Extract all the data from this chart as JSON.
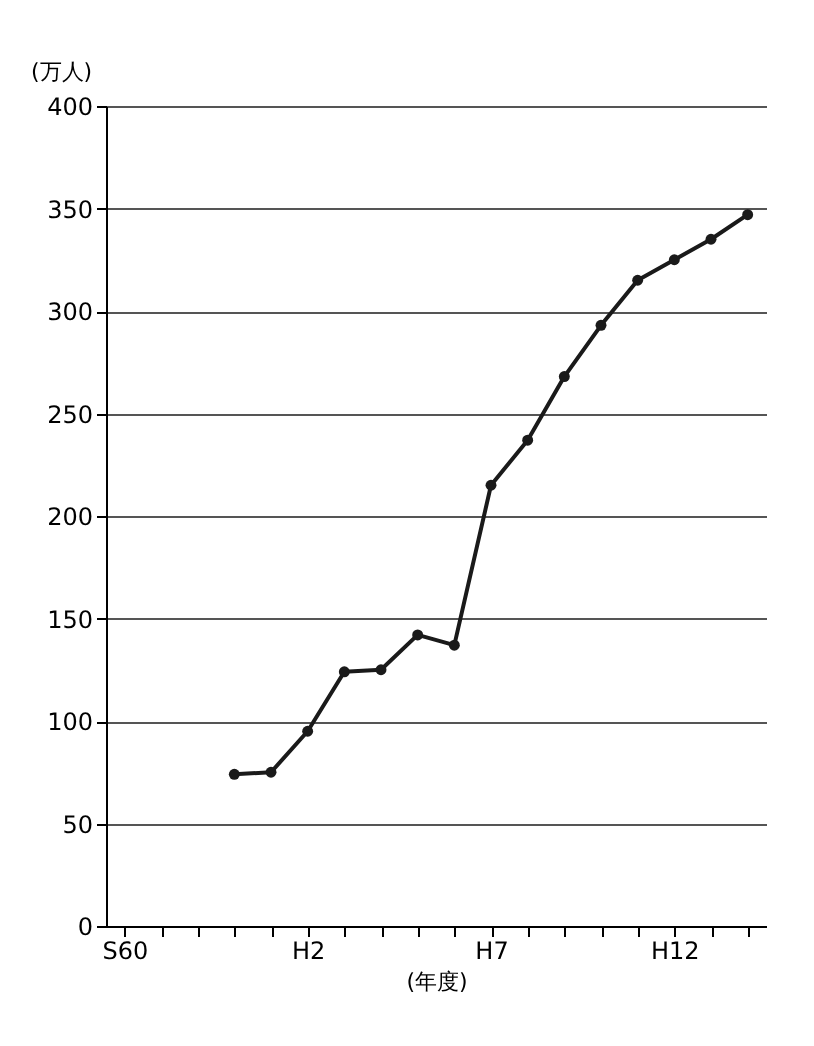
{
  "chart_data": {
    "type": "line",
    "xlabel": "(年度)",
    "ylabel": "(万人)",
    "categories": [
      "S60",
      null,
      null,
      null,
      null,
      "H2",
      null,
      null,
      null,
      null,
      "H7",
      null,
      null,
      null,
      null,
      "H12",
      null,
      null
    ],
    "series": [
      {
        "color": "#1a1a1a",
        "values": [
          null,
          null,
          null,
          74,
          75,
          95,
          124,
          125,
          142,
          137,
          215,
          237,
          268,
          293,
          315,
          325,
          335,
          347
        ]
      }
    ],
    "ylim": [
      0,
      400
    ],
    "yticks": [
      0,
      50,
      100,
      150,
      200,
      250,
      300,
      350,
      400
    ],
    "grid": "y",
    "marker": "circle",
    "line_style": "solid"
  }
}
